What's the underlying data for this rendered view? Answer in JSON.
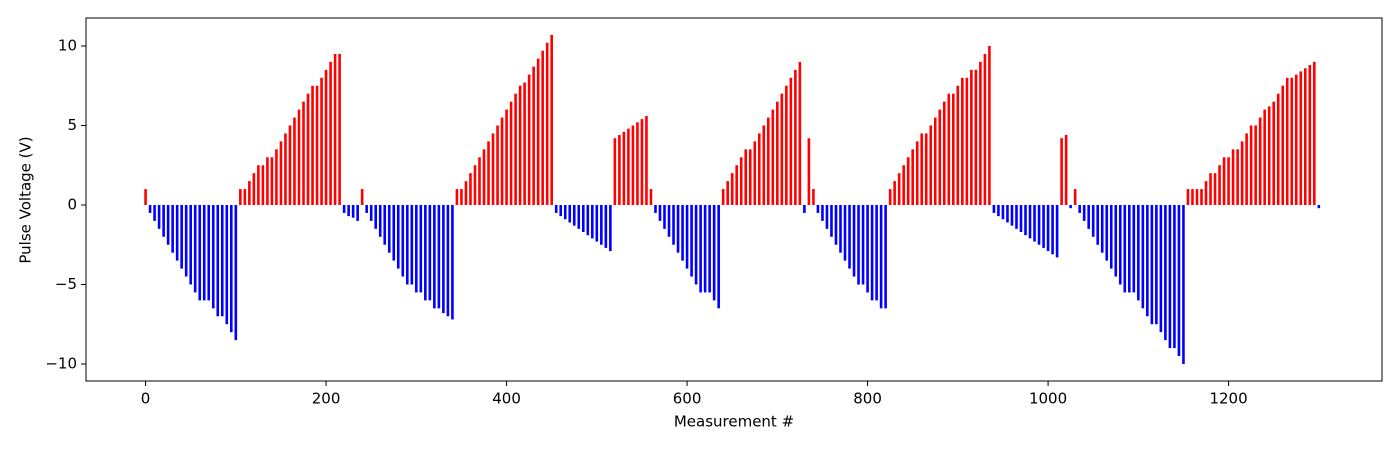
{
  "chart_data": {
    "type": "bar",
    "xlabel": "Measurement #",
    "ylabel": "Pulse Voltage (V)",
    "x": [
      0,
      5,
      10,
      15,
      20,
      25,
      30,
      35,
      40,
      45,
      50,
      55,
      60,
      65,
      70,
      75,
      80,
      85,
      90,
      95,
      100,
      105,
      110,
      115,
      120,
      125,
      130,
      135,
      140,
      145,
      150,
      155,
      160,
      165,
      170,
      175,
      180,
      185,
      190,
      195,
      200,
      205,
      210,
      215,
      220,
      225,
      230,
      235,
      240,
      245,
      250,
      255,
      260,
      265,
      270,
      275,
      280,
      285,
      290,
      295,
      300,
      305,
      310,
      315,
      320,
      325,
      330,
      335,
      340,
      345,
      350,
      355,
      360,
      365,
      370,
      375,
      380,
      385,
      390,
      395,
      400,
      405,
      410,
      415,
      420,
      425,
      430,
      435,
      440,
      445,
      450,
      455,
      460,
      465,
      470,
      475,
      480,
      485,
      490,
      495,
      500,
      505,
      510,
      515,
      520,
      525,
      530,
      535,
      540,
      545,
      550,
      555,
      560,
      565,
      570,
      575,
      580,
      585,
      590,
      595,
      600,
      605,
      610,
      615,
      620,
      625,
      630,
      635,
      640,
      645,
      650,
      655,
      660,
      665,
      670,
      675,
      680,
      685,
      690,
      695,
      700,
      705,
      710,
      715,
      720,
      725,
      730,
      735,
      740,
      745,
      750,
      755,
      760,
      765,
      770,
      775,
      780,
      785,
      790,
      795,
      800,
      805,
      810,
      815,
      820,
      825,
      830,
      835,
      840,
      845,
      850,
      855,
      860,
      865,
      870,
      875,
      880,
      885,
      890,
      895,
      900,
      905,
      910,
      915,
      920,
      925,
      930,
      935,
      940,
      945,
      950,
      955,
      960,
      965,
      970,
      975,
      980,
      985,
      990,
      995,
      1000,
      1005,
      1010,
      1015,
      1020,
      1025,
      1030,
      1035,
      1040,
      1045,
      1050,
      1055,
      1060,
      1065,
      1070,
      1075,
      1080,
      1085,
      1090,
      1095,
      1100,
      1105,
      1110,
      1115,
      1120,
      1125,
      1130,
      1135,
      1140,
      1145,
      1150,
      1155,
      1160,
      1165,
      1170,
      1175,
      1180,
      1185,
      1190,
      1195,
      1200,
      1205,
      1210,
      1215,
      1220,
      1225,
      1230,
      1235,
      1240,
      1245,
      1250,
      1255,
      1260,
      1265,
      1270,
      1275,
      1280,
      1285,
      1290,
      1295,
      1300
    ],
    "values": [
      1,
      -0.5,
      -1,
      -1.5,
      -2,
      -2.5,
      -3,
      -3.5,
      -4,
      -4.5,
      -5,
      -5.5,
      -6,
      -6,
      -6,
      -6.5,
      -7,
      -7,
      -7.5,
      -8,
      -8.5,
      1,
      1,
      1.5,
      2,
      2.5,
      2.5,
      3,
      3,
      3.5,
      4,
      4.5,
      5,
      5.5,
      6,
      6.5,
      7,
      7.5,
      7.5,
      8,
      8.5,
      9,
      9.5,
      9.5,
      -0.5,
      -0.7,
      -0.8,
      -1,
      1,
      -0.5,
      -1,
      -1.5,
      -2,
      -2.5,
      -3,
      -3.5,
      -4,
      -4.5,
      -5,
      -5,
      -5.5,
      -5.5,
      -6,
      -6,
      -6.5,
      -6.5,
      -6.8,
      -7,
      -7.2,
      1,
      1,
      1.5,
      2,
      2.5,
      3,
      3.5,
      4,
      4.5,
      5,
      5.5,
      6,
      6.5,
      7,
      7.5,
      7.7,
      8.2,
      8.7,
      9.2,
      9.7,
      10.2,
      10.7,
      -0.5,
      -0.7,
      -0.9,
      -1.1,
      -1.3,
      -1.5,
      -1.7,
      -1.9,
      -2.1,
      -2.3,
      -2.5,
      -2.7,
      -2.9,
      4.2,
      4.4,
      4.6,
      4.8,
      5,
      5.2,
      5.4,
      5.6,
      1,
      -0.5,
      -1,
      -1.5,
      -2,
      -2.5,
      -3,
      -3.5,
      -4,
      -4.5,
      -5,
      -5.5,
      -5.5,
      -5.5,
      -6,
      -6.5,
      1,
      1.5,
      2,
      2.5,
      3,
      3.5,
      3.5,
      4,
      4.5,
      5,
      5.5,
      6,
      6.5,
      7,
      7.5,
      8,
      8.5,
      9,
      -0.5,
      4.2,
      1,
      -0.5,
      -1,
      -1.5,
      -2,
      -2.5,
      -3,
      -3.5,
      -4,
      -4.5,
      -5,
      -5,
      -5.5,
      -6,
      -6,
      -6.5,
      -6.5,
      1,
      1.5,
      2,
      2.5,
      3,
      3.5,
      4,
      4.5,
      4.5,
      5,
      5.5,
      6,
      6.5,
      7,
      7,
      7.5,
      8,
      8,
      8.5,
      8.5,
      9,
      9.5,
      10,
      -0.5,
      -0.7,
      -0.9,
      -1.1,
      -1.3,
      -1.5,
      -1.7,
      -1.9,
      -2.1,
      -2.3,
      -2.5,
      -2.7,
      -2.9,
      -3.1,
      -3.3,
      4.2,
      4.4,
      -0.2,
      1,
      -0.5,
      -1,
      -1.5,
      -2,
      -2.5,
      -3,
      -3.5,
      -4,
      -4.5,
      -5,
      -5.5,
      -5.5,
      -5.5,
      -6,
      -6.5,
      -7,
      -7.5,
      -7.5,
      -8,
      -8.5,
      -9,
      -9,
      -9.5,
      -10,
      1,
      1,
      1,
      1,
      1.5,
      2,
      2,
      2.5,
      3,
      3,
      3.5,
      3.5,
      4,
      4.5,
      5,
      5,
      5.5,
      6,
      6.2,
      6.5,
      7,
      7.5,
      8,
      8,
      8.2,
      8.4,
      8.6,
      8.8,
      9,
      -0.2
    ],
    "positive_color": "#ff0000",
    "negative_color": "#0000ff",
    "xlim": [
      -66,
      1370
    ],
    "ylim": [
      -11.07,
      11.76
    ],
    "xticks": [
      0,
      200,
      400,
      600,
      800,
      1000,
      1200
    ],
    "yticks": [
      {
        "value": -10,
        "label": "−10"
      },
      {
        "value": -5,
        "label": "−5"
      },
      0,
      5,
      10
    ]
  }
}
